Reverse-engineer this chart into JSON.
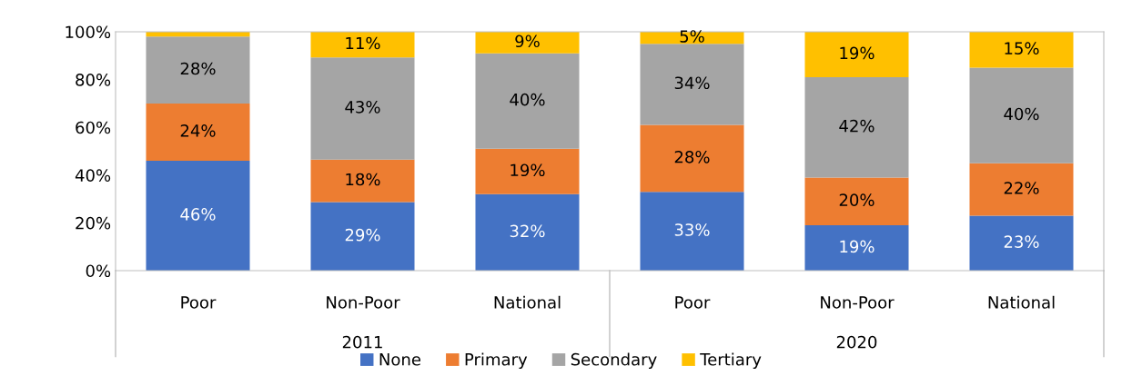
{
  "chart_data": {
    "type": "bar",
    "stacked": true,
    "categories": [
      "Poor",
      "Non-Poor",
      "National",
      "Poor",
      "Non-Poor",
      "National"
    ],
    "annotations": [
      "2011",
      "2020"
    ],
    "series": [
      {
        "name": "None",
        "color": "#4472c4",
        "values": [
          46,
          28.7,
          32,
          33,
          19,
          23
        ],
        "value_labels": [
          "46%",
          "29%",
          "32%",
          "33%",
          "19%",
          "23%"
        ]
      },
      {
        "name": "Primary",
        "color": "#ed7d31",
        "values": [
          24,
          17.8,
          19,
          28,
          20,
          22
        ],
        "value_labels": [
          "24%",
          "18%",
          "19%",
          "28%",
          "20%",
          "22%"
        ]
      },
      {
        "name": "Secondary",
        "color": "#a5a5a5",
        "values": [
          28,
          42.8,
          40,
          34,
          42,
          40
        ],
        "value_labels": [
          "28%",
          "43%",
          "40%",
          "34%",
          "42%",
          "40%"
        ]
      },
      {
        "name": "Tertiary",
        "color": "#ffc000",
        "values": [
          2,
          10.7,
          9,
          5,
          19,
          15
        ],
        "value_labels": [
          null,
          "11%",
          "9%",
          "5%",
          "19%",
          "15%"
        ]
      }
    ],
    "ylim": [
      0,
      100
    ],
    "yticks": [
      {
        "value": 0,
        "label": "0%"
      },
      {
        "value": 20,
        "label": "20%"
      },
      {
        "value": 40,
        "label": "40%"
      },
      {
        "value": 60,
        "label": "60%"
      },
      {
        "value": 80,
        "label": "80%"
      },
      {
        "value": 100,
        "label": "100%"
      }
    ],
    "grid": false,
    "legend": "bottom"
  }
}
